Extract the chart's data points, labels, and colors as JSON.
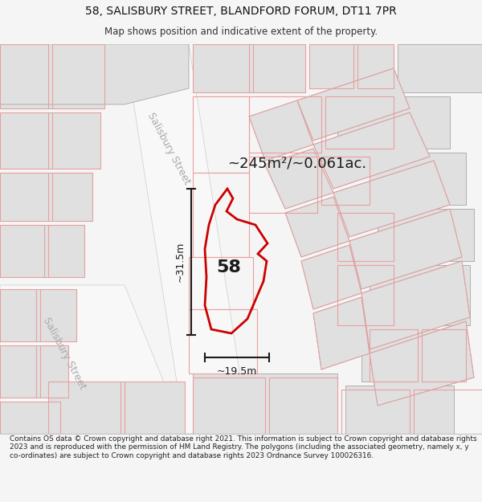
{
  "title_line1": "58, SALISBURY STREET, BLANDFORD FORUM, DT11 7PR",
  "title_line2": "Map shows position and indicative extent of the property.",
  "area_label": "~245m²/~0.061ac.",
  "number_label": "58",
  "dim_vertical": "~31.5m",
  "dim_horizontal": "~19.5m",
  "street_label_top": "Salisbury Street",
  "street_label_bottom": "Salisbury Street",
  "footer_text": "Contains OS data © Crown copyright and database right 2021. This information is subject to Crown copyright and database rights 2023 and is reproduced with the permission of HM Land Registry. The polygons (including the associated geometry, namely x, y co-ordinates) are subject to Crown copyright and database rights 2023 Ordnance Survey 100026316.",
  "bg_color": "#f5f5f5",
  "map_bg": "#ffffff",
  "building_fill": "#e0e0e0",
  "building_edge": "#b0b0b0",
  "highlight_color": "#cc0000",
  "dim_color": "#1a1a1a",
  "faint_outline": "#e8a0a0",
  "road_color": "#ffffff",
  "street_label_color": "#aaaaaa"
}
